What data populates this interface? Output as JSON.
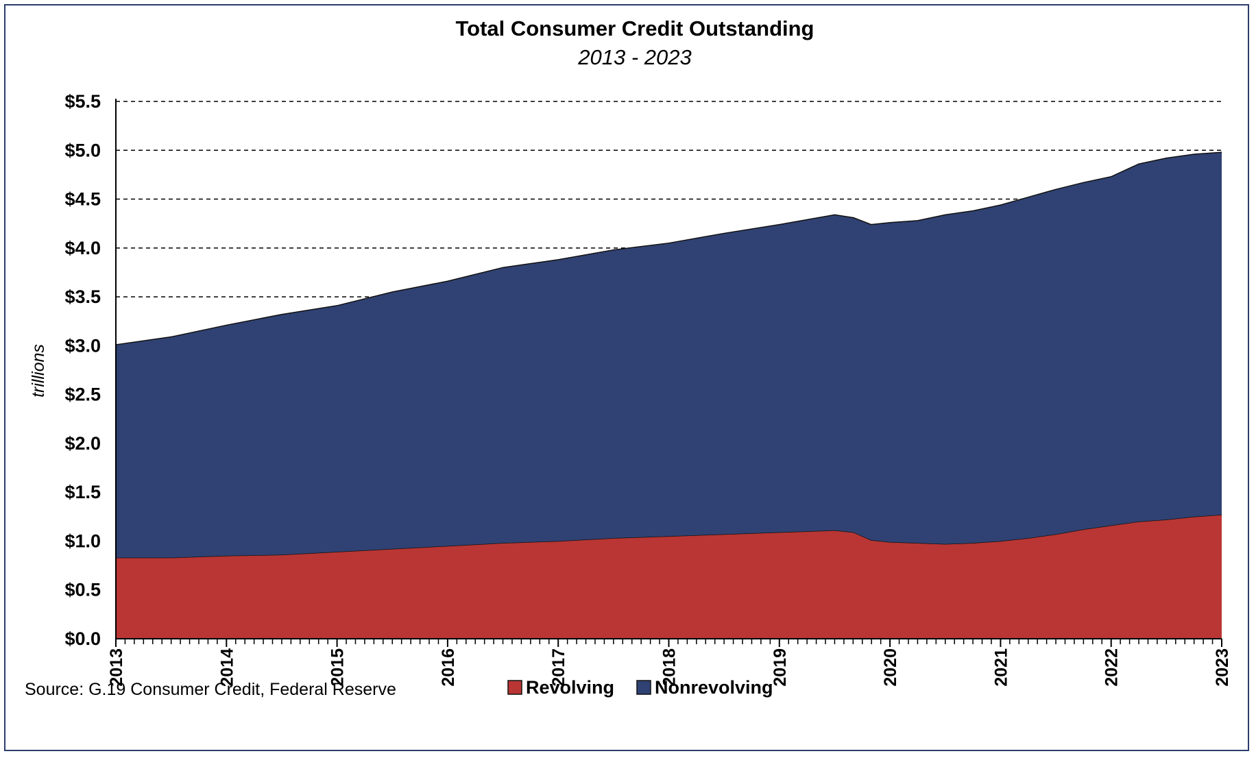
{
  "chart_data": {
    "type": "area",
    "stacked": true,
    "title": "Total Consumer Credit Outstanding",
    "subtitle": "2013 - 2023",
    "ylabel": "trillions",
    "xlabel": "",
    "ylim": [
      0,
      5.5
    ],
    "y_ticks": [
      "$0.0",
      "$0.5",
      "$1.0",
      "$1.5",
      "$2.0",
      "$2.5",
      "$3.0",
      "$3.5",
      "$4.0",
      "$4.5",
      "$5.0",
      "$5.5"
    ],
    "x_ticks": [
      "2013",
      "2014",
      "2015",
      "2016",
      "2017",
      "2018",
      "2019",
      "2020",
      "2021",
      "2022",
      "2023"
    ],
    "grid": "horizontal dashed",
    "legend_position": "bottom",
    "x": [
      2013.0,
      2013.5,
      2014.0,
      2014.5,
      2015.0,
      2015.5,
      2016.0,
      2016.5,
      2017.0,
      2017.5,
      2018.0,
      2018.5,
      2019.0,
      2019.25,
      2019.5,
      2019.67,
      2019.83,
      2020.0,
      2020.25,
      2020.5,
      2020.75,
      2021.0,
      2021.25,
      2021.5,
      2021.75,
      2022.0,
      2022.25,
      2022.5,
      2022.75,
      2023.0
    ],
    "series": [
      {
        "name": "Revolving",
        "color": "#b93634",
        "values": [
          0.83,
          0.83,
          0.85,
          0.86,
          0.89,
          0.92,
          0.95,
          0.98,
          1.0,
          1.03,
          1.05,
          1.07,
          1.09,
          1.1,
          1.11,
          1.09,
          1.01,
          0.99,
          0.98,
          0.97,
          0.98,
          1.0,
          1.03,
          1.07,
          1.12,
          1.16,
          1.2,
          1.22,
          1.25,
          1.27
        ]
      },
      {
        "name": "Nonrevolving",
        "color": "#304273",
        "values": [
          2.18,
          2.26,
          2.36,
          2.46,
          2.52,
          2.63,
          2.71,
          2.82,
          2.88,
          2.95,
          3.0,
          3.08,
          3.15,
          3.19,
          3.23,
          3.22,
          3.23,
          3.27,
          3.3,
          3.37,
          3.4,
          3.44,
          3.49,
          3.53,
          3.55,
          3.57,
          3.66,
          3.7,
          3.71,
          3.71
        ]
      }
    ],
    "source": "Source: G.19 Consumer Credit, Federal Reserve"
  }
}
